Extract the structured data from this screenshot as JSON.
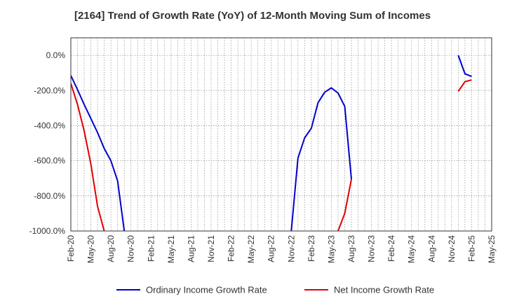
{
  "chart_data": {
    "type": "line",
    "title": "[2164]  Trend of Growth Rate (YoY) of 12-Month Moving Sum of Incomes",
    "xlabel": "",
    "ylabel": "",
    "ylim": [
      -1000,
      100
    ],
    "yticks": [
      0,
      -200,
      -400,
      -600,
      -800,
      -1000
    ],
    "ytick_labels": [
      "0.0%",
      "-200.0%",
      "-400.0%",
      "-600.0%",
      "-800.0%",
      "-1000.0%"
    ],
    "x_start": "2020-02",
    "x_end": "2025-05",
    "xtick_labels": [
      "Feb-20",
      "May-20",
      "Aug-20",
      "Nov-20",
      "Feb-21",
      "May-21",
      "Aug-21",
      "Nov-21",
      "Feb-22",
      "May-22",
      "Aug-22",
      "Nov-22",
      "Feb-23",
      "May-23",
      "Aug-23",
      "Nov-23",
      "Feb-24",
      "May-24",
      "Aug-24",
      "Nov-24",
      "Feb-25",
      "May-25"
    ],
    "grid": true,
    "legend_position": "bottom",
    "series": [
      {
        "name": "Ordinary Income Growth Rate",
        "color": "#0000cc",
        "segments": [
          [
            [
              "2020-02",
              -115
            ],
            [
              "2020-03",
              -195
            ],
            [
              "2020-04",
              -280
            ],
            [
              "2020-05",
              -360
            ],
            [
              "2020-06",
              -440
            ],
            [
              "2020-07",
              -530
            ],
            [
              "2020-08",
              -600
            ],
            [
              "2020-09",
              -715
            ],
            [
              "2020-10",
              -1000
            ]
          ],
          [
            [
              "2022-11",
              -1000
            ],
            [
              "2022-12",
              -585
            ],
            [
              "2023-01",
              -470
            ],
            [
              "2023-02",
              -415
            ],
            [
              "2023-03",
              -270
            ],
            [
              "2023-04",
              -210
            ],
            [
              "2023-05",
              -185
            ],
            [
              "2023-06",
              -215
            ],
            [
              "2023-07",
              -290
            ],
            [
              "2023-08",
              -705
            ]
          ],
          [
            [
              "2024-12",
              0
            ],
            [
              "2025-01",
              -105
            ],
            [
              "2025-02",
              -120
            ]
          ]
        ]
      },
      {
        "name": "Net Income Growth Rate",
        "color": "#e00000",
        "segments": [
          [
            [
              "2020-02",
              -160
            ],
            [
              "2020-03",
              -280
            ],
            [
              "2020-04",
              -430
            ],
            [
              "2020-05",
              -620
            ],
            [
              "2020-06",
              -860
            ],
            [
              "2020-07",
              -1000
            ]
          ],
          [
            [
              "2023-06",
              -1000
            ],
            [
              "2023-07",
              -900
            ],
            [
              "2023-08",
              -705
            ]
          ],
          [
            [
              "2024-12",
              -205
            ],
            [
              "2025-01",
              -150
            ],
            [
              "2025-02",
              -140
            ]
          ]
        ]
      }
    ]
  }
}
